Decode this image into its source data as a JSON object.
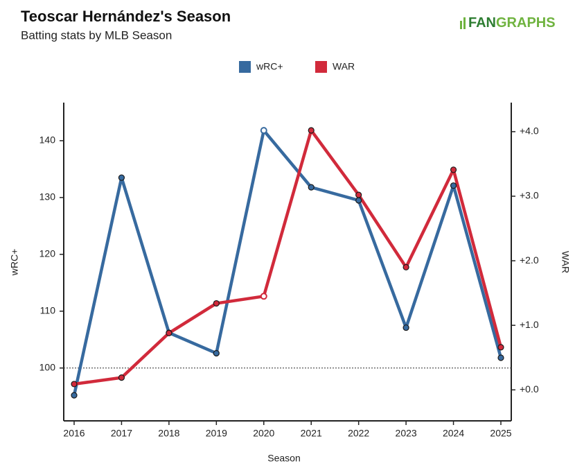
{
  "chart_data": {
    "type": "line",
    "title": "Teoscar Hernández's Season",
    "subtitle": "Batting stats by MLB Season",
    "logo": [
      "FAN",
      "GRAPHS"
    ],
    "x_label": "Season",
    "y_label": "wRC+",
    "y2_label": "WAR",
    "categories": [
      "2016",
      "2017",
      "2018",
      "2019",
      "2020",
      "2021",
      "2022",
      "2023",
      "2024",
      "2025"
    ],
    "series": [
      {
        "name": "wRC+",
        "color": "#376a9f",
        "values": [
          95.2,
          133.5,
          106.2,
          102.6,
          141.8,
          131.8,
          129.5,
          107.1,
          132.1,
          101.8
        ]
      },
      {
        "name": "WAR",
        "color": "#d12a3b",
        "axis": "y2",
        "values": [
          0.09,
          0.19,
          0.88,
          1.34,
          1.45,
          4.02,
          3.02,
          1.9,
          3.41,
          0.66
        ]
      }
    ],
    "open_marker_categories": [
      "2020"
    ],
    "reference_line": 100,
    "ylim": [
      90.7,
      146.7
    ],
    "yticks": [
      100,
      110,
      120,
      130,
      140
    ],
    "y2lim": [
      -0.48,
      4.45
    ],
    "y2ticks": [
      {
        "value": 0,
        "label": "+0.0"
      },
      {
        "value": 1,
        "label": "+1.0"
      },
      {
        "value": 2,
        "label": "+2.0"
      },
      {
        "value": 3,
        "label": "+3.0"
      },
      {
        "value": 4,
        "label": "+4.0"
      }
    ],
    "legend": "top"
  }
}
